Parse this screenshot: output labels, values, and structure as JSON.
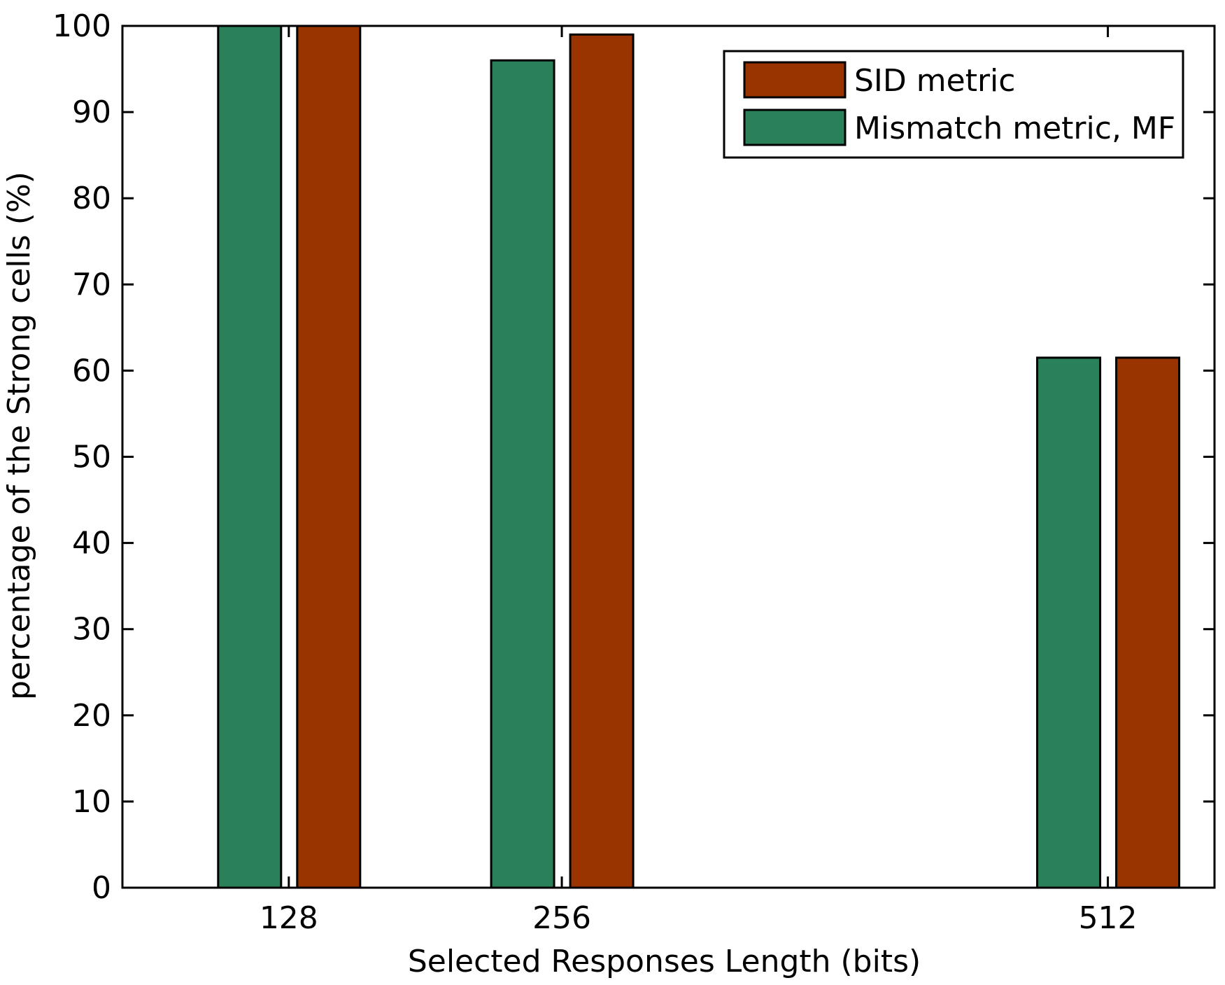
{
  "chart_data": {
    "type": "bar",
    "title": "",
    "xlabel": "Selected Responses Length (bits)",
    "ylabel": "percentage of the Strong cells (%)",
    "categories": [
      "128",
      "256",
      "512"
    ],
    "x_values": [
      128,
      256,
      512
    ],
    "xlim": [
      50,
      562
    ],
    "ylim": [
      0,
      100
    ],
    "yticks": [
      "0",
      "10",
      "20",
      "30",
      "40",
      "50",
      "60",
      "70",
      "80",
      "90",
      "100"
    ],
    "grid": false,
    "legend_position": "top-right",
    "series": [
      {
        "name": "Mismatch metric, MF",
        "values": [
          100,
          96,
          61.5
        ],
        "color": "#2a8058"
      },
      {
        "name": "SID metric",
        "values": [
          100,
          99,
          61.5
        ],
        "color": "#993300"
      }
    ],
    "legend": [
      "SID metric",
      "Mismatch metric, MF"
    ]
  }
}
